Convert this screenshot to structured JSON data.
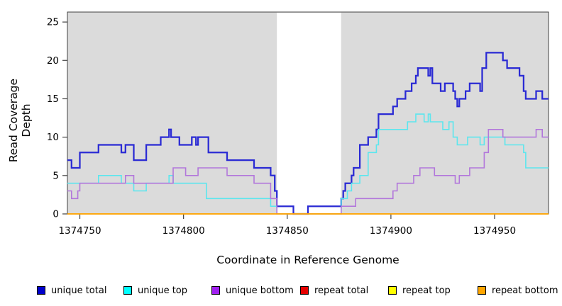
{
  "chart_data": {
    "type": "line",
    "subtype": "step",
    "title": "",
    "xlabel": "Coordinate in Reference Genome",
    "ylabel": "Read Coverage Depth",
    "xlim": [
      1374744,
      1374976
    ],
    "ylim": [
      0,
      26.3
    ],
    "x_ticks": [
      1374750,
      1374800,
      1374850,
      1374900,
      1374950
    ],
    "y_ticks": [
      0,
      5,
      10,
      15,
      20,
      25
    ],
    "grid": false,
    "legend_position": "bottom",
    "plot_background_color": "#DBDBDB",
    "highlight_region": {
      "x0": 1374845,
      "x1": 1374876,
      "color": "#FFFFFF"
    },
    "axis_color": "#404040",
    "series": [
      {
        "name": "unique total",
        "legend_color": "#0000CC",
        "line_color": "#2A2AD4",
        "line_width": 2.25,
        "points": [
          [
            1374744,
            7
          ],
          [
            1374746,
            6
          ],
          [
            1374750,
            8
          ],
          [
            1374759,
            9
          ],
          [
            1374770,
            8
          ],
          [
            1374772,
            9
          ],
          [
            1374776,
            7
          ],
          [
            1374782,
            9
          ],
          [
            1374789,
            10
          ],
          [
            1374793,
            11
          ],
          [
            1374794,
            10
          ],
          [
            1374798,
            9
          ],
          [
            1374804,
            10
          ],
          [
            1374806,
            9
          ],
          [
            1374807,
            10
          ],
          [
            1374812,
            8
          ],
          [
            1374821,
            7
          ],
          [
            1374834,
            6
          ],
          [
            1374842,
            5
          ],
          [
            1374844,
            3
          ],
          [
            1374845,
            1
          ],
          [
            1374853,
            0
          ],
          [
            1374860,
            1
          ],
          [
            1374876,
            2
          ],
          [
            1374877,
            3
          ],
          [
            1374878,
            4
          ],
          [
            1374881,
            5
          ],
          [
            1374882,
            6
          ],
          [
            1374885,
            9
          ],
          [
            1374889,
            10
          ],
          [
            1374893,
            11
          ],
          [
            1374894,
            13
          ],
          [
            1374901,
            14
          ],
          [
            1374903,
            15
          ],
          [
            1374907,
            16
          ],
          [
            1374910,
            17
          ],
          [
            1374912,
            18
          ],
          [
            1374913,
            19
          ],
          [
            1374918,
            18
          ],
          [
            1374919,
            19
          ],
          [
            1374920,
            17
          ],
          [
            1374924,
            16
          ],
          [
            1374926,
            17
          ],
          [
            1374930,
            16
          ],
          [
            1374931,
            15
          ],
          [
            1374932,
            14
          ],
          [
            1374933,
            15
          ],
          [
            1374936,
            16
          ],
          [
            1374938,
            17
          ],
          [
            1374943,
            16
          ],
          [
            1374944,
            19
          ],
          [
            1374946,
            21
          ],
          [
            1374954,
            20
          ],
          [
            1374956,
            19
          ],
          [
            1374962,
            18
          ],
          [
            1374964,
            16
          ],
          [
            1374965,
            15
          ],
          [
            1374970,
            16
          ],
          [
            1374973,
            15
          ]
        ]
      },
      {
        "name": "unique top",
        "legend_color": "#00FFFF",
        "line_color": "#5CE6EE",
        "line_width": 1.6,
        "points": [
          [
            1374744,
            4
          ],
          [
            1374759,
            5
          ],
          [
            1374770,
            4
          ],
          [
            1374776,
            3
          ],
          [
            1374782,
            4
          ],
          [
            1374793,
            5
          ],
          [
            1374795,
            4
          ],
          [
            1374811,
            2
          ],
          [
            1374842,
            1
          ],
          [
            1374845,
            0
          ],
          [
            1374876,
            2
          ],
          [
            1374879,
            3
          ],
          [
            1374881,
            4
          ],
          [
            1374885,
            5
          ],
          [
            1374889,
            8
          ],
          [
            1374893,
            9
          ],
          [
            1374894,
            11
          ],
          [
            1374908,
            12
          ],
          [
            1374912,
            13
          ],
          [
            1374916,
            12
          ],
          [
            1374918,
            13
          ],
          [
            1374919,
            12
          ],
          [
            1374925,
            11
          ],
          [
            1374928,
            12
          ],
          [
            1374930,
            10
          ],
          [
            1374932,
            9
          ],
          [
            1374937,
            10
          ],
          [
            1374943,
            9
          ],
          [
            1374945,
            10
          ],
          [
            1374955,
            9
          ],
          [
            1374964,
            8
          ],
          [
            1374965,
            6
          ]
        ]
      },
      {
        "name": "unique bottom",
        "legend_color": "#A020F0",
        "line_color": "#B277DB",
        "line_width": 1.6,
        "points": [
          [
            1374744,
            3
          ],
          [
            1374746,
            2
          ],
          [
            1374749,
            3
          ],
          [
            1374750,
            4
          ],
          [
            1374772,
            5
          ],
          [
            1374776,
            4
          ],
          [
            1374795,
            6
          ],
          [
            1374801,
            5
          ],
          [
            1374807,
            6
          ],
          [
            1374821,
            5
          ],
          [
            1374834,
            4
          ],
          [
            1374842,
            2
          ],
          [
            1374845,
            0
          ],
          [
            1374876,
            1
          ],
          [
            1374883,
            2
          ],
          [
            1374901,
            3
          ],
          [
            1374903,
            4
          ],
          [
            1374911,
            5
          ],
          [
            1374914,
            6
          ],
          [
            1374921,
            5
          ],
          [
            1374931,
            4
          ],
          [
            1374933,
            5
          ],
          [
            1374938,
            6
          ],
          [
            1374945,
            8
          ],
          [
            1374947,
            11
          ],
          [
            1374954,
            10
          ],
          [
            1374970,
            11
          ],
          [
            1374973,
            10
          ]
        ]
      },
      {
        "name": "repeat total",
        "legend_color": "#E60000",
        "line_color": "#DD2222",
        "line_width": 1.2,
        "points": [
          [
            1374744,
            0
          ]
        ]
      },
      {
        "name": "repeat top",
        "legend_color": "#FFFF00",
        "line_color": "#EEEE22",
        "line_width": 1.2,
        "points": [
          [
            1374744,
            0
          ]
        ]
      },
      {
        "name": "repeat bottom",
        "legend_color": "#FFA500",
        "line_color": "#FFA500",
        "line_width": 1.7,
        "points": [
          [
            1374744,
            0
          ]
        ]
      }
    ]
  },
  "legend_layout_x": [
    52,
    174,
    298,
    423,
    547,
    673
  ]
}
